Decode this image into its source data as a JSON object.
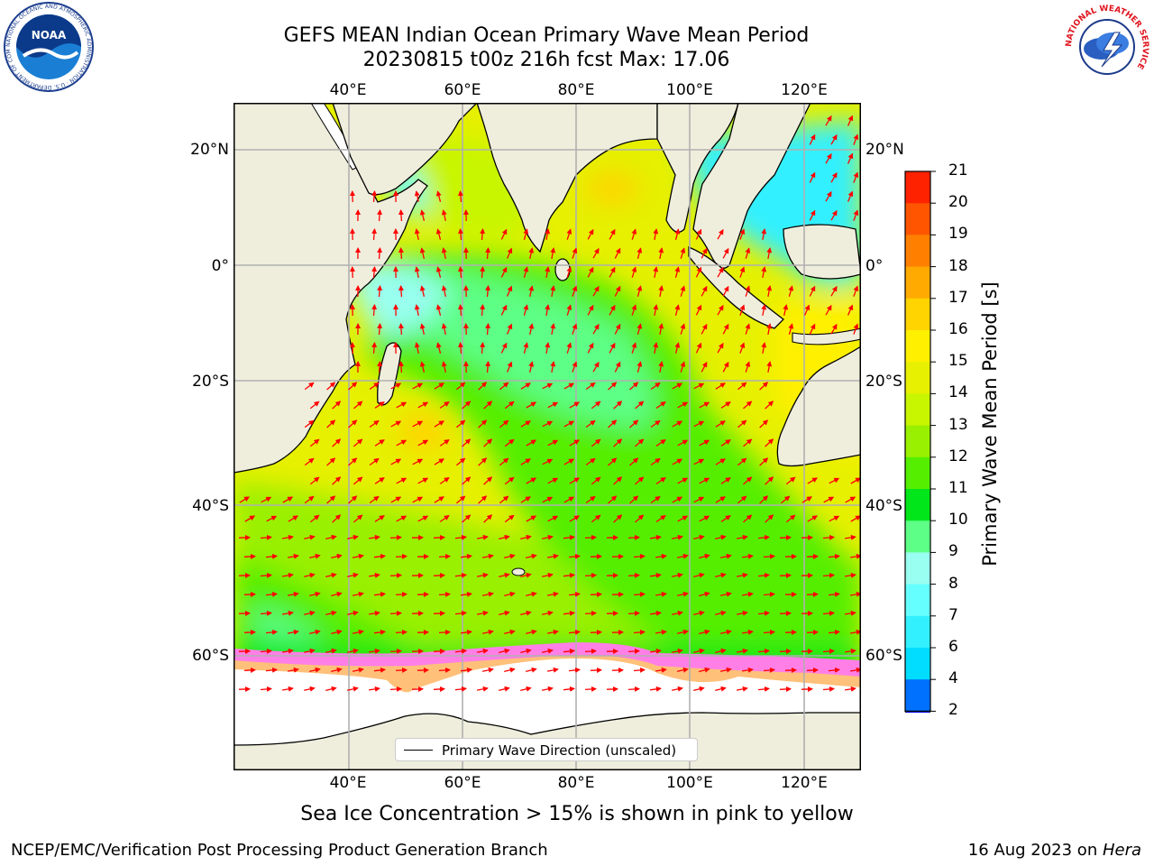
{
  "title_line1": "GEFS MEAN Indian Ocean Primary Wave Mean Period",
  "title_line2": "20230815 t00z 216h fcst   Max: 17.06",
  "logos": {
    "noaa_text": "NOAA",
    "noaa_ring_text": "NATIONAL OCEANIC AND ATMOSPHERIC ADMINISTRATION · U.S. DEPARTMENT OF COMMERCE",
    "nws_ring_text": "NATIONAL WEATHER SERVICE"
  },
  "map": {
    "lon_labels": [
      "40°E",
      "60°E",
      "80°E",
      "100°E",
      "120°E"
    ],
    "lat_labels": [
      "20°N",
      "0°",
      "20°S",
      "40°S",
      "60°S"
    ],
    "legend_label": "Primary Wave Direction (unscaled)",
    "colors": {
      "land": "#efeedd",
      "ice": "#ffffff",
      "arrow": "#ff0000",
      "grid": "#b0b0b0"
    }
  },
  "colorbar": {
    "label": "Primary Wave Mean Period [s]",
    "ticks": [
      "2",
      "4",
      "6",
      "7",
      "8",
      "9",
      "10",
      "11",
      "12",
      "13",
      "14",
      "15",
      "16",
      "17",
      "18",
      "19",
      "20",
      "21"
    ],
    "colors": [
      "#0070ff",
      "#00ddff",
      "#33f0ff",
      "#66ffff",
      "#99fff0",
      "#5dff86",
      "#00e61a",
      "#55ee00",
      "#99f000",
      "#c8f500",
      "#e6f000",
      "#fff000",
      "#ffd400",
      "#ffaa00",
      "#ff8000",
      "#ff5500",
      "#ff2200"
    ],
    "extend_color": "#0000ff"
  },
  "footer_note": "Sea Ice Concentration > 15% is shown in pink to yellow",
  "credit": "NCEP/EMC/Verification Post Processing Product Generation Branch",
  "date_prefix": "16 Aug 2023 on ",
  "date_machine": "Hera"
}
